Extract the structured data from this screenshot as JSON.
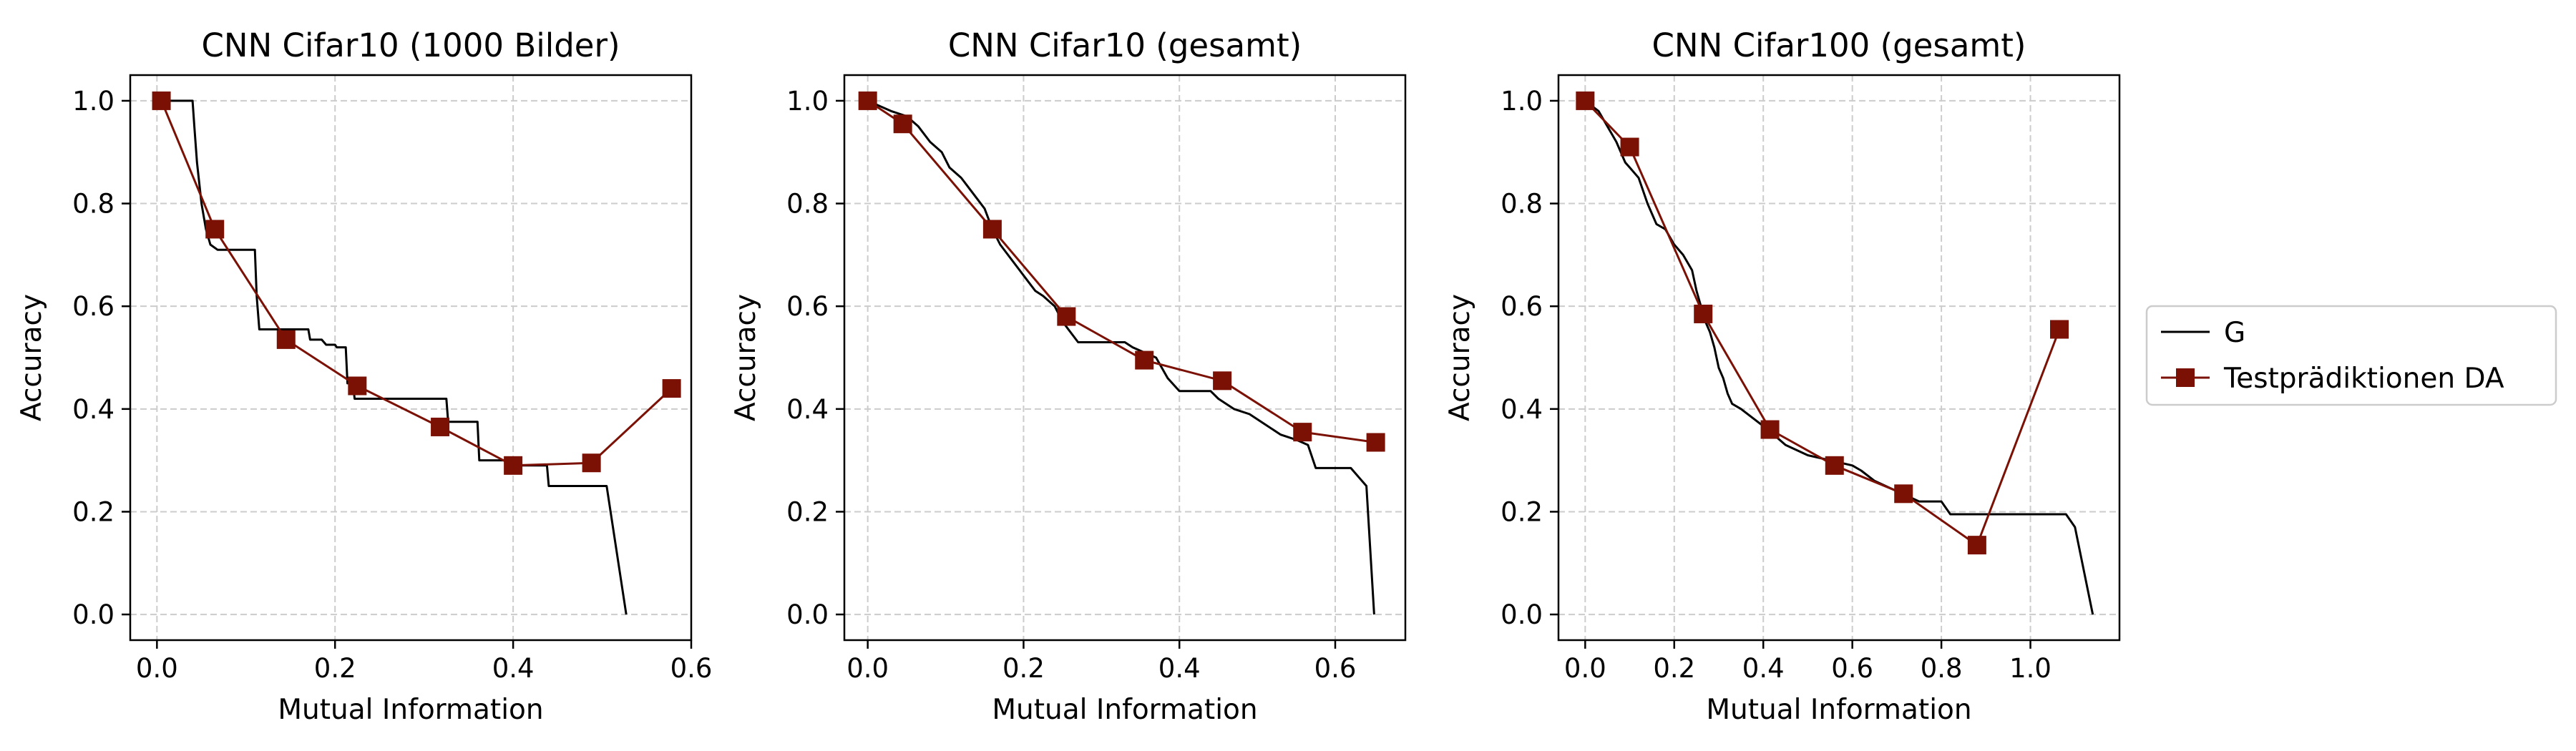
{
  "colors": {
    "g_line": "#000000",
    "da_line": "#7b1104",
    "grid": "#cccccc",
    "legend_border": "#cccccc"
  },
  "legend": {
    "placement": "right",
    "entries": [
      {
        "label": "G",
        "style": "line",
        "color": "#000000"
      },
      {
        "label": "Testprädiktionen DA",
        "style": "line-square",
        "color": "#7b1104"
      }
    ]
  },
  "chart_data": [
    {
      "type": "line",
      "title": "CNN Cifar10 (1000 Bilder)",
      "xlabel": "Mutual Information",
      "ylabel": "Accuracy",
      "xlim": [
        -0.03,
        0.6
      ],
      "ylim": [
        -0.05,
        1.05
      ],
      "xticks": [
        0.0,
        0.2,
        0.4,
        0.6
      ],
      "xtick_labels": [
        "0.0",
        "0.2",
        "0.4",
        "0.6"
      ],
      "yticks": [
        0.0,
        0.2,
        0.4,
        0.6,
        0.8,
        1.0
      ],
      "ytick_labels": [
        "0.0",
        "0.2",
        "0.4",
        "0.6",
        "0.8",
        "1.0"
      ],
      "grid": true,
      "series": [
        {
          "name": "G",
          "style": "line",
          "x": [
            0.0,
            0.04,
            0.042,
            0.045,
            0.05,
            0.055,
            0.06,
            0.068,
            0.11,
            0.112,
            0.115,
            0.17,
            0.172,
            0.185,
            0.19,
            0.2,
            0.202,
            0.212,
            0.214,
            0.22,
            0.222,
            0.325,
            0.327,
            0.36,
            0.362,
            0.4,
            0.402,
            0.438,
            0.44,
            0.505,
            0.527
          ],
          "y": [
            1.0,
            1.0,
            0.95,
            0.88,
            0.8,
            0.75,
            0.72,
            0.71,
            0.71,
            0.62,
            0.555,
            0.555,
            0.535,
            0.535,
            0.525,
            0.525,
            0.52,
            0.52,
            0.45,
            0.45,
            0.42,
            0.42,
            0.375,
            0.375,
            0.3,
            0.3,
            0.29,
            0.29,
            0.25,
            0.25,
            0.0
          ]
        },
        {
          "name": "Testprädiktionen DA",
          "style": "line-square",
          "x": [
            0.005,
            0.065,
            0.145,
            0.225,
            0.318,
            0.4,
            0.488,
            0.578
          ],
          "y": [
            1.0,
            0.75,
            0.535,
            0.445,
            0.365,
            0.29,
            0.295,
            0.44
          ]
        }
      ]
    },
    {
      "type": "line",
      "title": "CNN Cifar10 (gesamt)",
      "xlabel": "Mutual Information",
      "ylabel": "Accuracy",
      "xlim": [
        -0.03,
        0.69
      ],
      "ylim": [
        -0.05,
        1.05
      ],
      "xticks": [
        0.0,
        0.2,
        0.4,
        0.6
      ],
      "xtick_labels": [
        "0.0",
        "0.2",
        "0.4",
        "0.6"
      ],
      "yticks": [
        0.0,
        0.2,
        0.4,
        0.6,
        0.8,
        1.0
      ],
      "ytick_labels": [
        "0.0",
        "0.2",
        "0.4",
        "0.6",
        "0.8",
        "1.0"
      ],
      "grid": true,
      "series": [
        {
          "name": "G",
          "style": "line",
          "x": [
            0.0,
            0.015,
            0.03,
            0.05,
            0.065,
            0.08,
            0.095,
            0.105,
            0.12,
            0.135,
            0.15,
            0.16,
            0.17,
            0.18,
            0.195,
            0.205,
            0.215,
            0.225,
            0.24,
            0.25,
            0.26,
            0.27,
            0.285,
            0.3,
            0.33,
            0.34,
            0.37,
            0.385,
            0.4,
            0.44,
            0.45,
            0.47,
            0.49,
            0.51,
            0.53,
            0.55,
            0.565,
            0.575,
            0.62,
            0.64,
            0.65
          ],
          "y": [
            1.0,
            0.99,
            0.98,
            0.97,
            0.95,
            0.92,
            0.9,
            0.87,
            0.85,
            0.82,
            0.79,
            0.75,
            0.72,
            0.7,
            0.67,
            0.65,
            0.63,
            0.62,
            0.6,
            0.57,
            0.55,
            0.53,
            0.53,
            0.53,
            0.53,
            0.52,
            0.5,
            0.46,
            0.435,
            0.435,
            0.42,
            0.4,
            0.39,
            0.37,
            0.35,
            0.34,
            0.33,
            0.285,
            0.285,
            0.25,
            0.0
          ]
        },
        {
          "name": "Testprädiktionen DA",
          "style": "line-square",
          "x": [
            0.0,
            0.045,
            0.16,
            0.255,
            0.355,
            0.455,
            0.558,
            0.652
          ],
          "y": [
            1.0,
            0.955,
            0.75,
            0.58,
            0.495,
            0.455,
            0.355,
            0.335
          ]
        }
      ]
    },
    {
      "type": "line",
      "title": "CNN Cifar100 (gesamt)",
      "xlabel": "Mutual Information",
      "ylabel": "Accuracy",
      "xlim": [
        -0.06,
        1.2
      ],
      "ylim": [
        -0.05,
        1.05
      ],
      "xticks": [
        0.0,
        0.2,
        0.4,
        0.6,
        0.8,
        1.0
      ],
      "xtick_labels": [
        "0.0",
        "0.2",
        "0.4",
        "0.6",
        "0.8",
        "1.0"
      ],
      "yticks": [
        0.0,
        0.2,
        0.4,
        0.6,
        0.8,
        1.0
      ],
      "ytick_labels": [
        "0.0",
        "0.2",
        "0.4",
        "0.6",
        "0.8",
        "1.0"
      ],
      "grid": true,
      "series": [
        {
          "name": "G",
          "style": "line",
          "x": [
            0.0,
            0.03,
            0.05,
            0.07,
            0.09,
            0.1,
            0.12,
            0.14,
            0.16,
            0.18,
            0.2,
            0.22,
            0.24,
            0.25,
            0.26,
            0.27,
            0.28,
            0.29,
            0.3,
            0.31,
            0.32,
            0.33,
            0.35,
            0.38,
            0.41,
            0.45,
            0.5,
            0.55,
            0.6,
            0.62,
            0.65,
            0.7,
            0.75,
            0.8,
            0.82,
            1.08,
            1.1,
            1.14
          ],
          "y": [
            1.0,
            0.98,
            0.95,
            0.92,
            0.88,
            0.87,
            0.85,
            0.8,
            0.76,
            0.75,
            0.72,
            0.7,
            0.67,
            0.63,
            0.6,
            0.57,
            0.55,
            0.52,
            0.48,
            0.46,
            0.43,
            0.41,
            0.4,
            0.38,
            0.36,
            0.33,
            0.31,
            0.3,
            0.29,
            0.28,
            0.26,
            0.24,
            0.22,
            0.22,
            0.195,
            0.195,
            0.17,
            0.0
          ]
        },
        {
          "name": "Testprädiktionen DA",
          "style": "line-square",
          "x": [
            0.0,
            0.1,
            0.265,
            0.415,
            0.56,
            0.715,
            0.88,
            1.065
          ],
          "y": [
            1.0,
            0.91,
            0.585,
            0.36,
            0.29,
            0.235,
            0.135,
            0.555
          ]
        }
      ]
    }
  ]
}
